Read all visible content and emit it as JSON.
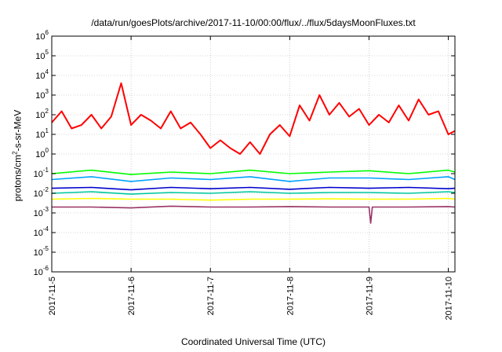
{
  "chart_data": {
    "type": "line",
    "title": "/data/run/goesPlots/archive/2017-11-10/00:00/flux/../flux/5daysMoonFluxes.txt",
    "xlabel": "Coordinated Universal Time (UTC)",
    "ylabel": "protons/cm2-s-sr-MeV",
    "ylabel_parts": {
      "before": "protons/cm",
      "sup": "2",
      "after": "-s-sr-MeV"
    },
    "y_scale": "log",
    "ylim": [
      1e-06,
      1000000.0
    ],
    "y_ticks": [
      {
        "exp": "-6",
        "value": 1e-06
      },
      {
        "exp": "-5",
        "value": 1e-05
      },
      {
        "exp": "-4",
        "value": 0.0001
      },
      {
        "exp": "-3",
        "value": 0.001
      },
      {
        "exp": "-2",
        "value": 0.01
      },
      {
        "exp": "-1",
        "value": 0.1
      },
      {
        "exp": "0",
        "value": 1
      },
      {
        "exp": "1",
        "value": 10
      },
      {
        "exp": "2",
        "value": 100
      },
      {
        "exp": "3",
        "value": 1000
      },
      {
        "exp": "4",
        "value": 10000
      },
      {
        "exp": "5",
        "value": 100000
      },
      {
        "exp": "6",
        "value": 1000000
      }
    ],
    "xlim": [
      "2017-11-05",
      "2017-11-10 02:00"
    ],
    "x_ticks": [
      "2017-11-5",
      "2017-11-6",
      "2017-11-7",
      "2017-11-8",
      "2017-11-9",
      "2017-11-10"
    ],
    "grid": true,
    "series": [
      {
        "color": "#ff0000",
        "x": [
          "2017-11-05 00:00",
          "2017-11-05 03:00",
          "2017-11-05 06:00",
          "2017-11-05 09:00",
          "2017-11-05 12:00",
          "2017-11-05 15:00",
          "2017-11-05 18:00",
          "2017-11-05 21:00",
          "2017-11-06 00:00",
          "2017-11-06 03:00",
          "2017-11-06 06:00",
          "2017-11-06 09:00",
          "2017-11-06 12:00",
          "2017-11-06 15:00",
          "2017-11-06 18:00",
          "2017-11-06 21:00",
          "2017-11-07 00:00",
          "2017-11-07 03:00",
          "2017-11-07 06:00",
          "2017-11-07 09:00",
          "2017-11-07 12:00",
          "2017-11-07 15:00",
          "2017-11-07 18:00",
          "2017-11-07 21:00",
          "2017-11-08 00:00",
          "2017-11-08 03:00",
          "2017-11-08 06:00",
          "2017-11-08 09:00",
          "2017-11-08 12:00",
          "2017-11-08 15:00",
          "2017-11-08 18:00",
          "2017-11-08 21:00",
          "2017-11-09 00:00",
          "2017-11-09 03:00",
          "2017-11-09 06:00",
          "2017-11-09 09:00",
          "2017-11-09 12:00",
          "2017-11-09 15:00",
          "2017-11-09 18:00",
          "2017-11-09 21:00",
          "2017-11-10 00:00",
          "2017-11-10 02:00"
        ],
        "y": [
          40,
          150,
          20,
          30,
          100,
          20,
          80,
          4000,
          30,
          100,
          50,
          20,
          150,
          20,
          40,
          10,
          2,
          5,
          2,
          1,
          4,
          1,
          10,
          30,
          8,
          300,
          50,
          1000,
          100,
          400,
          80,
          200,
          30,
          100,
          40,
          300,
          50,
          600,
          100,
          150,
          10,
          15
        ]
      },
      {
        "color": "#00ff00",
        "x": [
          "2017-11-05 00:00",
          "2017-11-05 12:00",
          "2017-11-06 00:00",
          "2017-11-06 12:00",
          "2017-11-07 00:00",
          "2017-11-07 12:00",
          "2017-11-08 00:00",
          "2017-11-08 12:00",
          "2017-11-09 00:00",
          "2017-11-09 12:00",
          "2017-11-10 00:00",
          "2017-11-10 02:00"
        ],
        "y": [
          0.1,
          0.15,
          0.09,
          0.12,
          0.1,
          0.15,
          0.1,
          0.12,
          0.14,
          0.1,
          0.15,
          0.12
        ]
      },
      {
        "color": "#00a2ff",
        "x": [
          "2017-11-05 00:00",
          "2017-11-05 12:00",
          "2017-11-06 00:00",
          "2017-11-06 12:00",
          "2017-11-07 00:00",
          "2017-11-07 12:00",
          "2017-11-08 00:00",
          "2017-11-08 12:00",
          "2017-11-09 00:00",
          "2017-11-09 12:00",
          "2017-11-10 00:00",
          "2017-11-10 02:00"
        ],
        "y": [
          0.05,
          0.07,
          0.04,
          0.06,
          0.05,
          0.07,
          0.04,
          0.06,
          0.06,
          0.05,
          0.07,
          0.05
        ]
      },
      {
        "color": "#0000cc",
        "x": [
          "2017-11-05 00:00",
          "2017-11-05 12:00",
          "2017-11-06 00:00",
          "2017-11-06 12:00",
          "2017-11-07 00:00",
          "2017-11-07 12:00",
          "2017-11-08 00:00",
          "2017-11-08 12:00",
          "2017-11-09 00:00",
          "2017-11-09 12:00",
          "2017-11-10 00:00",
          "2017-11-10 02:00"
        ],
        "y": [
          0.018,
          0.02,
          0.015,
          0.02,
          0.017,
          0.02,
          0.016,
          0.02,
          0.018,
          0.02,
          0.017,
          0.018
        ]
      },
      {
        "color": "#00c8a0",
        "x": [
          "2017-11-05 00:00",
          "2017-11-05 12:00",
          "2017-11-06 00:00",
          "2017-11-06 12:00",
          "2017-11-07 00:00",
          "2017-11-07 12:00",
          "2017-11-08 00:00",
          "2017-11-08 12:00",
          "2017-11-09 00:00",
          "2017-11-09 12:00",
          "2017-11-10 00:00",
          "2017-11-10 02:00"
        ],
        "y": [
          0.01,
          0.012,
          0.009,
          0.011,
          0.01,
          0.012,
          0.01,
          0.011,
          0.011,
          0.01,
          0.012,
          0.011
        ]
      },
      {
        "color": "#ffff00",
        "x": [
          "2017-11-05 00:00",
          "2017-11-05 12:00",
          "2017-11-06 00:00",
          "2017-11-06 12:00",
          "2017-11-07 00:00",
          "2017-11-07 12:00",
          "2017-11-08 00:00",
          "2017-11-08 12:00",
          "2017-11-09 00:00",
          "2017-11-09 12:00",
          "2017-11-10 00:00",
          "2017-11-10 02:00"
        ],
        "y": [
          0.005,
          0.0055,
          0.005,
          0.005,
          0.0045,
          0.005,
          0.005,
          0.0052,
          0.005,
          0.005,
          0.0055,
          0.005
        ]
      },
      {
        "color": "#993366",
        "x": [
          "2017-11-05 00:00",
          "2017-11-05 12:00",
          "2017-11-06 00:00",
          "2017-11-06 12:00",
          "2017-11-07 00:00",
          "2017-11-07 12:00",
          "2017-11-08 00:00",
          "2017-11-08 12:00",
          "2017-11-09 00:00",
          "2017-11-09 00:30",
          "2017-11-09 01:00",
          "2017-11-09 12:00",
          "2017-11-10 00:00",
          "2017-11-10 02:00"
        ],
        "y": [
          0.002,
          0.002,
          0.0018,
          0.0022,
          0.002,
          0.002,
          0.0021,
          0.002,
          0.002,
          0.0003,
          0.002,
          0.002,
          0.0021,
          0.002
        ]
      }
    ]
  }
}
